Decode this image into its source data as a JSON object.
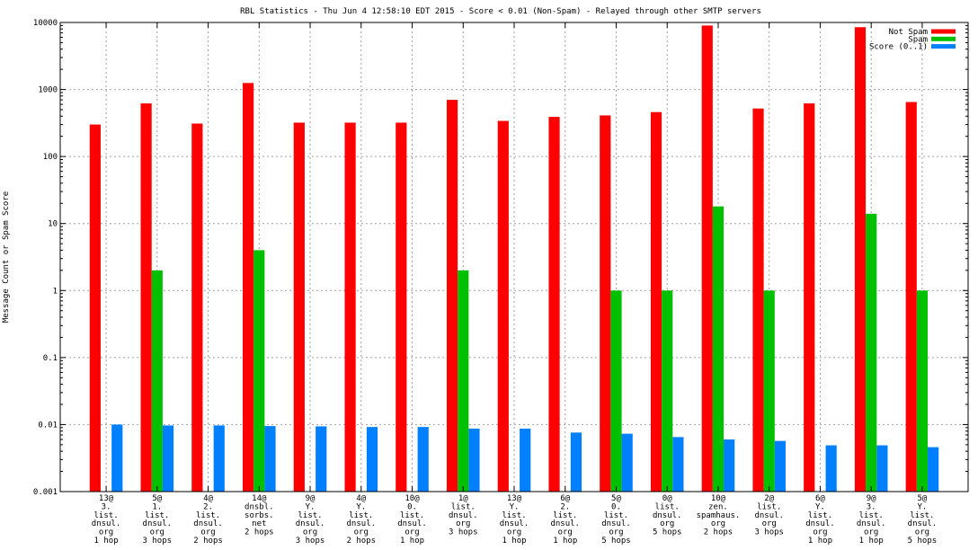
{
  "chart_data": {
    "type": "bar",
    "title": "RBL Statistics - Thu Jun  4 12:58:10 EDT 2015 - Score < 0.01 (Non-Spam) - Relayed through other SMTP servers",
    "xlabel": "",
    "ylabel": "Message Count or Spam Score",
    "yscale": "log",
    "ylim": [
      0.001,
      10000
    ],
    "yticks": [
      "10000",
      "1000",
      "100",
      "10",
      "1",
      "0.1",
      "0.01",
      "0.001"
    ],
    "grid": true,
    "legend_position": "top-right",
    "categories": [
      [
        "13@",
        "3.",
        "list.",
        "dnsul.",
        "org",
        "1 hop"
      ],
      [
        "5@",
        "1.",
        "list.",
        "dnsul.",
        "org",
        "3 hops"
      ],
      [
        "4@",
        "2.",
        "list.",
        "dnsul.",
        "org",
        "2 hops"
      ],
      [
        "14@",
        "dnsbl.",
        "sorbs.",
        "net",
        "2 hops"
      ],
      [
        "9@",
        "Y.",
        "list.",
        "dnsul.",
        "org",
        "3 hops"
      ],
      [
        "4@",
        "Y.",
        "list.",
        "dnsul.",
        "org",
        "2 hops"
      ],
      [
        "10@",
        "0.",
        "list.",
        "dnsul.",
        "org",
        "1 hop"
      ],
      [
        "1@",
        "list.",
        "dnsul.",
        "org",
        "3 hops"
      ],
      [
        "13@",
        "Y.",
        "list.",
        "dnsul.",
        "org",
        "1 hop"
      ],
      [
        "6@",
        "2.",
        "list.",
        "dnsul.",
        "org",
        "1 hop"
      ],
      [
        "5@",
        "0.",
        "list.",
        "dnsul.",
        "org",
        "5 hops"
      ],
      [
        "0@",
        "list.",
        "dnsul.",
        "org",
        "5 hops"
      ],
      [
        "10@",
        "zen.",
        "spamhaus.",
        "org",
        "2 hops"
      ],
      [
        "2@",
        "list.",
        "dnsul.",
        "org",
        "3 hops"
      ],
      [
        "6@",
        "Y.",
        "list.",
        "dnsul.",
        "org",
        "1 hop"
      ],
      [
        "9@",
        "3.",
        "list.",
        "dnsul.",
        "org",
        "1 hop"
      ],
      [
        "5@",
        "Y.",
        "list.",
        "dnsul.",
        "org",
        "5 hops"
      ]
    ],
    "series": [
      {
        "name": "Not Spam",
        "color": "#ff0000",
        "values": [
          300,
          620,
          310,
          1250,
          320,
          320,
          320,
          700,
          340,
          390,
          410,
          460,
          9000,
          520,
          620,
          8500,
          650
        ]
      },
      {
        "name": "Spam",
        "color": "#00c000",
        "values": [
          null,
          2,
          null,
          4,
          null,
          null,
          null,
          2,
          null,
          null,
          1,
          1,
          18,
          1,
          null,
          14,
          1
        ]
      },
      {
        "name": "Score (0..1)",
        "color": "#0080ff",
        "values": [
          0.01,
          0.0097,
          0.0097,
          0.0095,
          0.0094,
          0.0092,
          0.0092,
          0.0087,
          0.0087,
          0.0076,
          0.0073,
          0.0065,
          0.006,
          0.0057,
          0.0049,
          0.0049,
          0.0046
        ]
      }
    ]
  }
}
